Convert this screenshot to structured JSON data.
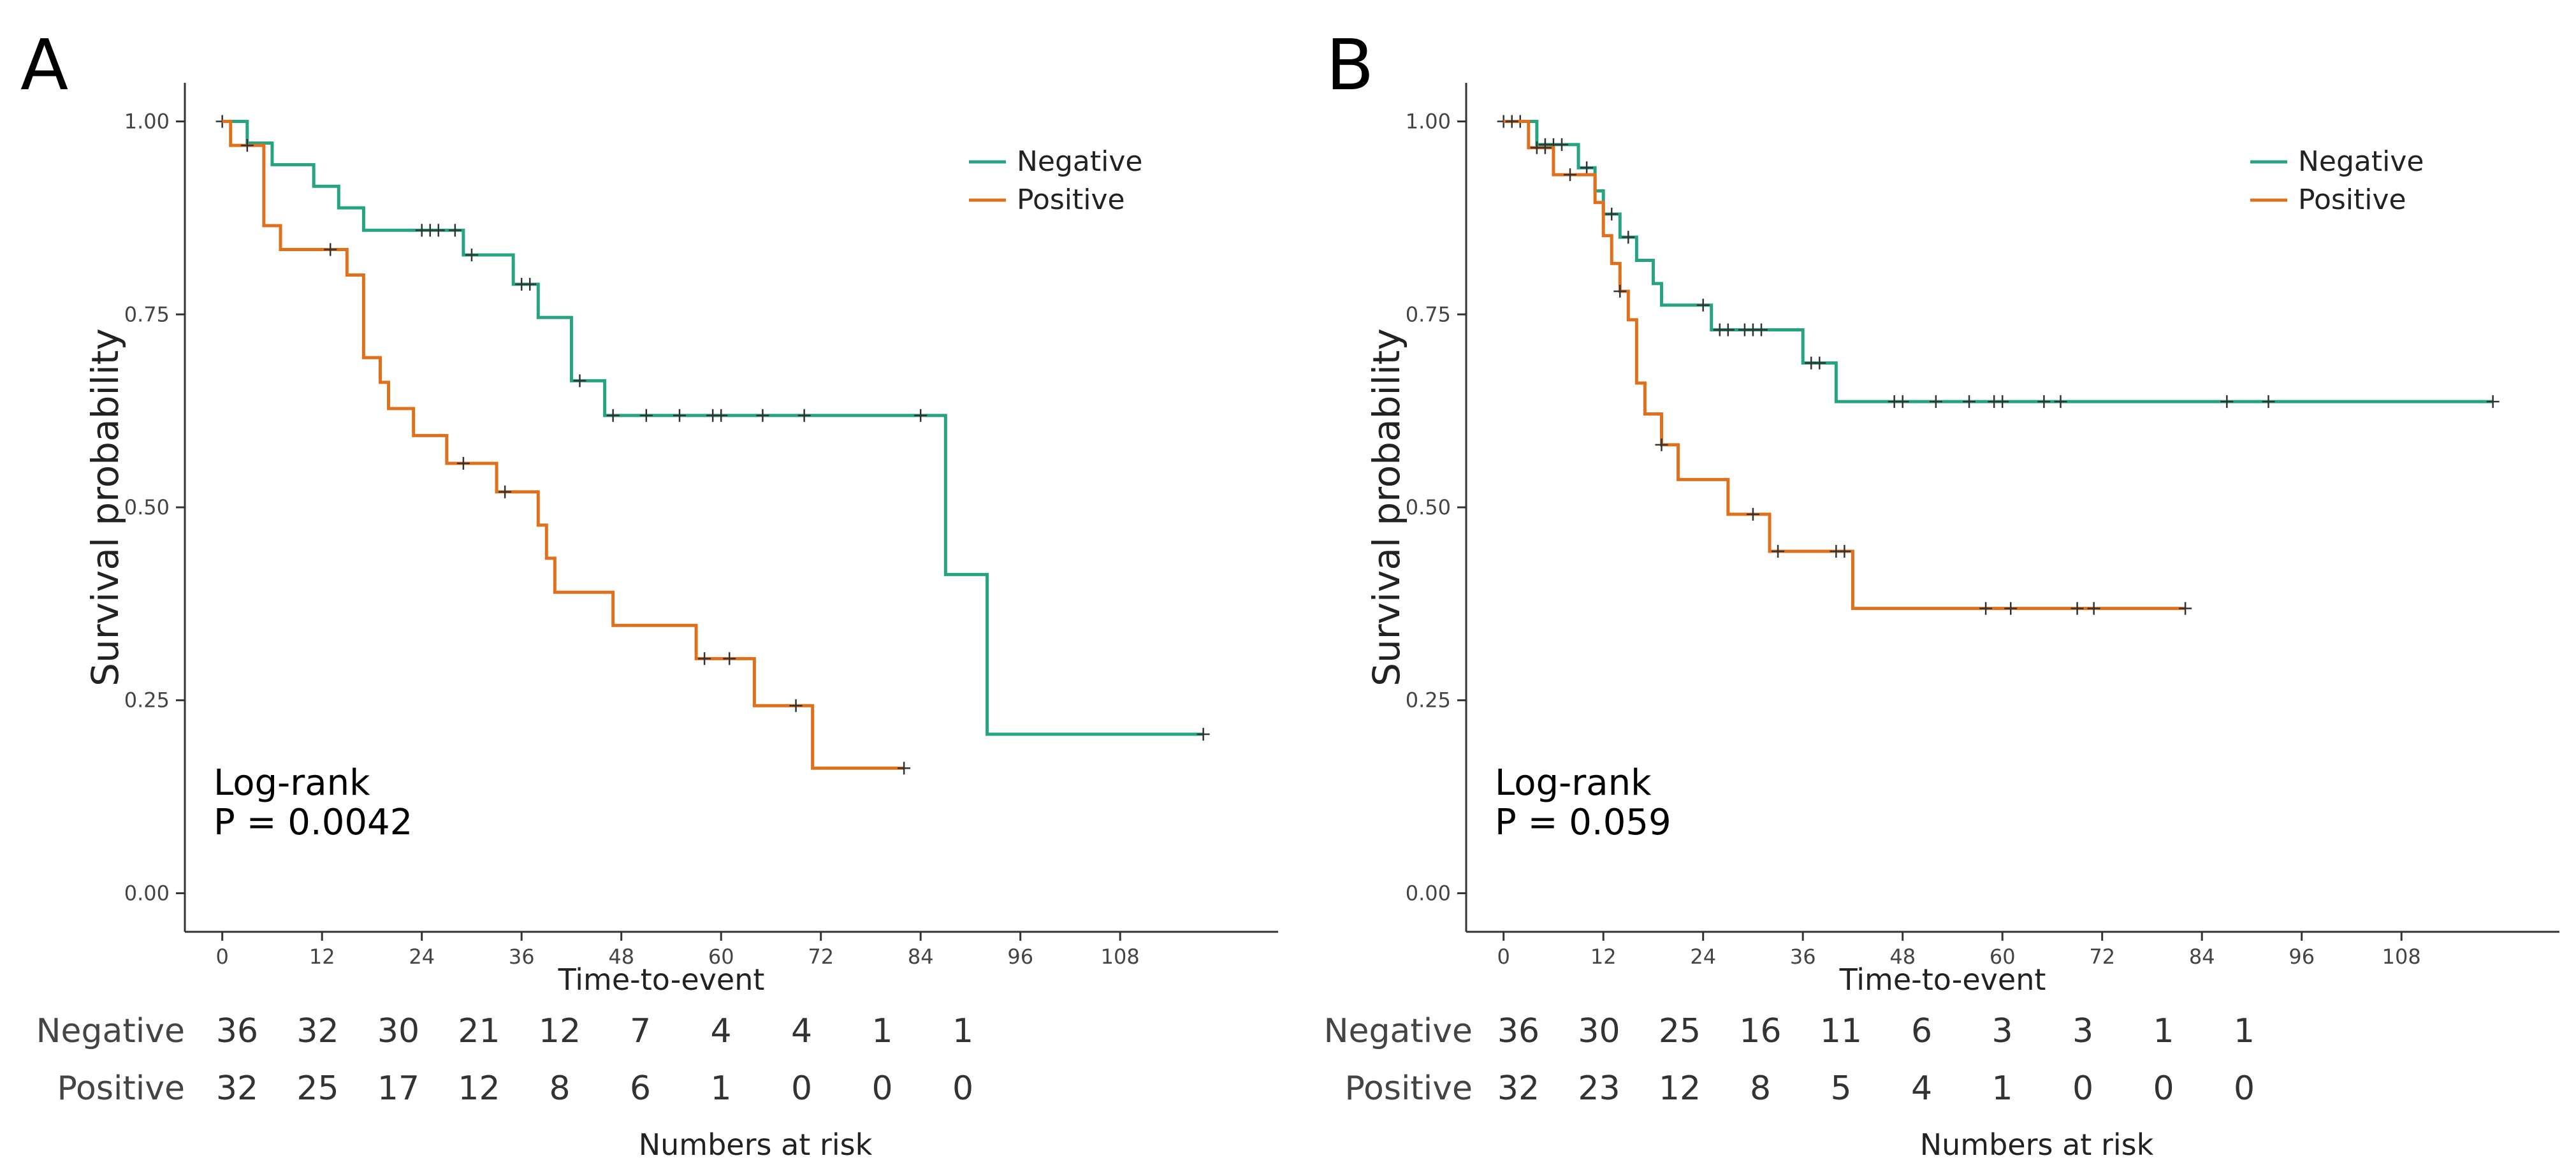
{
  "colors": {
    "negative": "#26a383",
    "positive": "#e0701c",
    "censor": "#333333",
    "axis": "#333333",
    "text": "#222222"
  },
  "chart_data": [
    {
      "type": "line",
      "panel_label": "A",
      "xlabel": "Time-to-event",
      "ylabel": "Survival probability",
      "xlim": [
        -4.5,
        127
      ],
      "ylim": [
        -0.05,
        1.05
      ],
      "x_ticks": [
        "0",
        "12",
        "24",
        "36",
        "48",
        "60",
        "72",
        "84",
        "96",
        "108"
      ],
      "y_ticks": [
        "0.00",
        "0.25",
        "0.50",
        "0.75",
        "1.00"
      ],
      "legend": [
        "Negative",
        "Positive"
      ],
      "annotation": [
        "Log-rank",
        "P = 0.0042"
      ],
      "series": [
        {
          "name": "Negative",
          "steps": [
            [
              0,
              1.0
            ],
            [
              3,
              0.972
            ],
            [
              6,
              0.944
            ],
            [
              11,
              0.916
            ],
            [
              14,
              0.888
            ],
            [
              17,
              0.859
            ],
            [
              29,
              0.827
            ],
            [
              35,
              0.789
            ],
            [
              38,
              0.746
            ],
            [
              42,
              0.664
            ],
            [
              46,
              0.619
            ],
            [
              87,
              0.413
            ],
            [
              92,
              0.206
            ],
            [
              118,
              0.206
            ]
          ],
          "censored": [
            [
              0,
              1.0
            ],
            [
              24,
              0.859
            ],
            [
              25,
              0.859
            ],
            [
              26,
              0.859
            ],
            [
              28,
              0.859
            ],
            [
              30,
              0.827
            ],
            [
              36,
              0.789
            ],
            [
              37,
              0.789
            ],
            [
              43,
              0.664
            ],
            [
              47,
              0.619
            ],
            [
              51,
              0.619
            ],
            [
              55,
              0.619
            ],
            [
              59,
              0.619
            ],
            [
              60,
              0.619
            ],
            [
              65,
              0.619
            ],
            [
              70,
              0.619
            ],
            [
              84,
              0.619
            ],
            [
              118,
              0.206
            ]
          ]
        },
        {
          "name": "Positive",
          "steps": [
            [
              0,
              1.0
            ],
            [
              1,
              0.969
            ],
            [
              5,
              0.865
            ],
            [
              7,
              0.834
            ],
            [
              15,
              0.801
            ],
            [
              17,
              0.694
            ],
            [
              19,
              0.662
            ],
            [
              20,
              0.628
            ],
            [
              23,
              0.593
            ],
            [
              27,
              0.557
            ],
            [
              33,
              0.52
            ],
            [
              38,
              0.477
            ],
            [
              39,
              0.434
            ],
            [
              40,
              0.39
            ],
            [
              47,
              0.347
            ],
            [
              57,
              0.304
            ],
            [
              64,
              0.243
            ],
            [
              71,
              0.162
            ],
            [
              82,
              0.162
            ]
          ],
          "censored": [
            [
              3,
              0.969
            ],
            [
              13,
              0.834
            ],
            [
              29,
              0.557
            ],
            [
              34,
              0.52
            ],
            [
              58,
              0.304
            ],
            [
              61,
              0.304
            ],
            [
              69,
              0.243
            ],
            [
              82,
              0.162
            ]
          ]
        }
      ],
      "risk_table": {
        "title": "Numbers at risk",
        "rows": [
          {
            "label": "Negative",
            "values": [
              "36",
              "32",
              "30",
              "21",
              "12",
              "7",
              "4",
              "4",
              "1",
              "1"
            ]
          },
          {
            "label": "Positive",
            "values": [
              "32",
              "25",
              "17",
              "12",
              "8",
              "6",
              "1",
              "0",
              "0",
              "0"
            ]
          }
        ]
      }
    },
    {
      "type": "line",
      "panel_label": "B",
      "xlabel": "Time-to-event",
      "ylabel": "Survival probability",
      "xlim": [
        -4.5,
        127
      ],
      "ylim": [
        -0.05,
        1.05
      ],
      "x_ticks": [
        "0",
        "12",
        "24",
        "36",
        "48",
        "60",
        "72",
        "84",
        "96",
        "108"
      ],
      "y_ticks": [
        "0.00",
        "0.25",
        "0.50",
        "0.75",
        "1.00"
      ],
      "legend": [
        "Negative",
        "Positive"
      ],
      "annotation": [
        "Log-rank",
        "P = 0.059"
      ],
      "series": [
        {
          "name": "Negative",
          "steps": [
            [
              0,
              1.0
            ],
            [
              4,
              0.97
            ],
            [
              9,
              0.94
            ],
            [
              11,
              0.91
            ],
            [
              12,
              0.88
            ],
            [
              14,
              0.85
            ],
            [
              16,
              0.82
            ],
            [
              18,
              0.79
            ],
            [
              19,
              0.762
            ],
            [
              25,
              0.73
            ],
            [
              36,
              0.687
            ],
            [
              40,
              0.637
            ],
            [
              119,
              0.637
            ]
          ],
          "censored": [
            [
              0,
              1.0
            ],
            [
              2,
              1.0
            ],
            [
              5,
              0.97
            ],
            [
              6,
              0.97
            ],
            [
              7,
              0.97
            ],
            [
              10,
              0.94
            ],
            [
              13,
              0.88
            ],
            [
              15,
              0.85
            ],
            [
              24,
              0.762
            ],
            [
              26,
              0.73
            ],
            [
              27,
              0.73
            ],
            [
              29,
              0.73
            ],
            [
              30,
              0.73
            ],
            [
              31,
              0.73
            ],
            [
              37,
              0.687
            ],
            [
              38,
              0.687
            ],
            [
              47,
              0.637
            ],
            [
              48,
              0.637
            ],
            [
              52,
              0.637
            ],
            [
              56,
              0.637
            ],
            [
              59,
              0.637
            ],
            [
              60,
              0.637
            ],
            [
              65,
              0.637
            ],
            [
              67,
              0.637
            ],
            [
              87,
              0.637
            ],
            [
              92,
              0.637
            ],
            [
              119,
              0.637
            ]
          ]
        },
        {
          "name": "Positive",
          "steps": [
            [
              0,
              1.0
            ],
            [
              3,
              0.966
            ],
            [
              6,
              0.931
            ],
            [
              11,
              0.895
            ],
            [
              12,
              0.852
            ],
            [
              13,
              0.816
            ],
            [
              14,
              0.78
            ],
            [
              15,
              0.743
            ],
            [
              16,
              0.661
            ],
            [
              17,
              0.621
            ],
            [
              19,
              0.581
            ],
            [
              21,
              0.536
            ],
            [
              27,
              0.491
            ],
            [
              32,
              0.443
            ],
            [
              42,
              0.369
            ],
            [
              82,
              0.369
            ]
          ],
          "censored": [
            [
              1,
              1.0
            ],
            [
              4,
              0.966
            ],
            [
              5,
              0.966
            ],
            [
              8,
              0.931
            ],
            [
              14,
              0.78
            ],
            [
              19,
              0.581
            ],
            [
              30,
              0.491
            ],
            [
              33,
              0.443
            ],
            [
              40,
              0.443
            ],
            [
              41,
              0.443
            ],
            [
              58,
              0.369
            ],
            [
              61,
              0.369
            ],
            [
              69,
              0.369
            ],
            [
              71,
              0.369
            ],
            [
              82,
              0.369
            ]
          ]
        }
      ],
      "risk_table": {
        "title": "Numbers at risk",
        "rows": [
          {
            "label": "Negative",
            "values": [
              "36",
              "30",
              "25",
              "16",
              "11",
              "6",
              "3",
              "3",
              "1",
              "1"
            ]
          },
          {
            "label": "Positive",
            "values": [
              "32",
              "23",
              "12",
              "8",
              "5",
              "4",
              "1",
              "0",
              "0",
              "0"
            ]
          }
        ]
      }
    }
  ]
}
